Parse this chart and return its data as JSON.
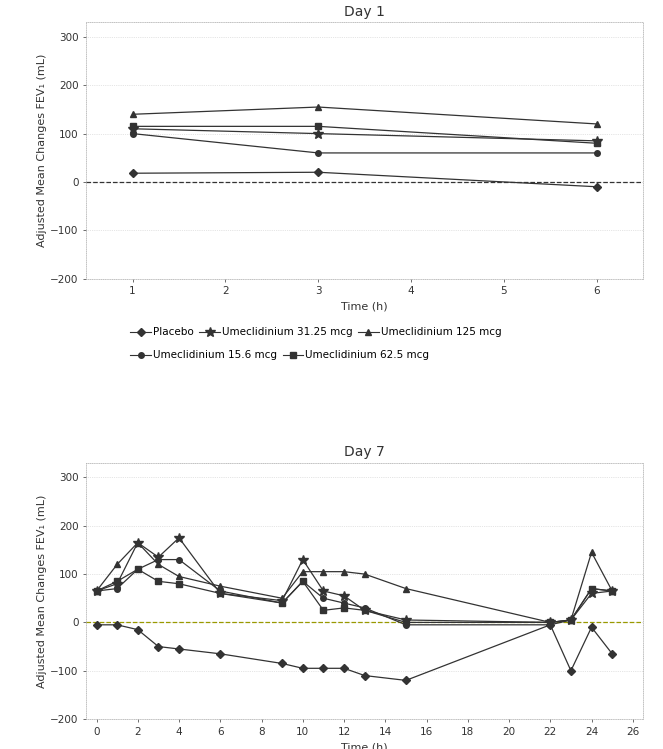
{
  "day1": {
    "title": "Day 1",
    "xlabel": "Time (h)",
    "ylabel": "Adjusted Mean Changes FEV₁ (mL)",
    "xlim": [
      0.5,
      6.5
    ],
    "ylim": [
      -200,
      330
    ],
    "yticks": [
      -200,
      -100,
      0,
      100,
      200,
      300
    ],
    "xticks": [
      1,
      2,
      3,
      4,
      5,
      6
    ],
    "dashed_color": "#333333",
    "series": [
      {
        "name": "Placebo",
        "x": [
          1,
          3,
          6
        ],
        "y": [
          18,
          20,
          -10
        ],
        "marker": "D",
        "ms": 4
      },
      {
        "name": "Umeclidinium 15.6 mcg",
        "x": [
          1,
          3,
          6
        ],
        "y": [
          100,
          60,
          60
        ],
        "marker": "o",
        "ms": 4
      },
      {
        "name": "Umeclidinium 31.25 mcg",
        "x": [
          1,
          3,
          6
        ],
        "y": [
          110,
          100,
          85
        ],
        "marker": "*",
        "ms": 7
      },
      {
        "name": "Umeclidinium 62.5 mcg",
        "x": [
          1,
          3,
          6
        ],
        "y": [
          115,
          115,
          80
        ],
        "marker": "s",
        "ms": 4
      },
      {
        "name": "Umeclidinium 125 mcg",
        "x": [
          1,
          3,
          6
        ],
        "y": [
          140,
          155,
          120
        ],
        "marker": "^",
        "ms": 5
      }
    ]
  },
  "day7": {
    "title": "Day 7",
    "xlabel": "Time (h)",
    "ylabel": "Adjusted Mean Changes FEV₁ (mL)",
    "xlim": [
      -0.5,
      26.5
    ],
    "ylim": [
      -200,
      330
    ],
    "yticks": [
      -200,
      -100,
      0,
      100,
      200,
      300
    ],
    "xticks": [
      0,
      2,
      4,
      6,
      8,
      10,
      12,
      14,
      16,
      18,
      20,
      22,
      24,
      26
    ],
    "dashed_color": "#999900",
    "series": [
      {
        "name": "Placebo",
        "x": [
          0,
          1,
          2,
          3,
          4,
          6,
          9,
          10,
          11,
          12,
          13,
          15,
          22,
          23,
          24,
          25
        ],
        "y": [
          -5,
          -5,
          -15,
          -50,
          -55,
          -65,
          -85,
          -95,
          -95,
          -95,
          -110,
          -120,
          -5,
          -100,
          -10,
          -65
        ],
        "marker": "D",
        "ms": 4
      },
      {
        "name": "Umeclidinium 15.6 mcg",
        "x": [
          0,
          1,
          2,
          3,
          4,
          6,
          9,
          10,
          11,
          12,
          13,
          15,
          22,
          23,
          24,
          25
        ],
        "y": [
          65,
          70,
          110,
          130,
          130,
          65,
          40,
          85,
          50,
          40,
          30,
          -5,
          -5,
          5,
          70,
          65
        ],
        "marker": "o",
        "ms": 4
      },
      {
        "name": "Umeclidinium 31.25 mcg",
        "x": [
          0,
          1,
          2,
          3,
          4,
          6,
          9,
          10,
          11,
          12,
          13,
          15,
          22,
          23,
          24,
          25
        ],
        "y": [
          65,
          80,
          165,
          135,
          175,
          60,
          45,
          130,
          65,
          55,
          25,
          5,
          0,
          5,
          60,
          65
        ],
        "marker": "*",
        "ms": 7
      },
      {
        "name": "Umeclidinium 62.5 mcg",
        "x": [
          0,
          1,
          2,
          3,
          4,
          6,
          9,
          10,
          11,
          12,
          13,
          15,
          22,
          23,
          24,
          25
        ],
        "y": [
          65,
          85,
          110,
          85,
          80,
          60,
          40,
          85,
          25,
          30,
          25,
          0,
          0,
          5,
          70,
          65
        ],
        "marker": "s",
        "ms": 4
      },
      {
        "name": "Umeclidinium 125 mcg",
        "x": [
          0,
          1,
          2,
          3,
          4,
          6,
          9,
          10,
          11,
          12,
          13,
          15,
          22,
          23,
          24,
          25
        ],
        "y": [
          65,
          120,
          165,
          120,
          95,
          75,
          50,
          105,
          105,
          105,
          100,
          70,
          0,
          5,
          145,
          65
        ],
        "marker": "^",
        "ms": 5
      }
    ]
  },
  "legend_row1": [
    {
      "label": "Placebo",
      "marker": "D",
      "ms": 4
    },
    {
      "label": "Umeclidinium 31.25 mcg",
      "marker": "*",
      "ms": 7
    },
    {
      "label": "Umeclidinium 125 mcg",
      "marker": "^",
      "ms": 5
    }
  ],
  "legend_row2": [
    {
      "label": "Umeclidinium 15.6 mcg",
      "marker": "o",
      "ms": 4
    },
    {
      "label": "Umeclidinium 62.5 mcg",
      "marker": "s",
      "ms": 4
    }
  ],
  "line_color": "#333333",
  "bg_color": "#ffffff",
  "plot_bg": "#ffffff",
  "title_fs": 10,
  "label_fs": 8,
  "tick_fs": 7.5,
  "legend_fs": 7.5
}
